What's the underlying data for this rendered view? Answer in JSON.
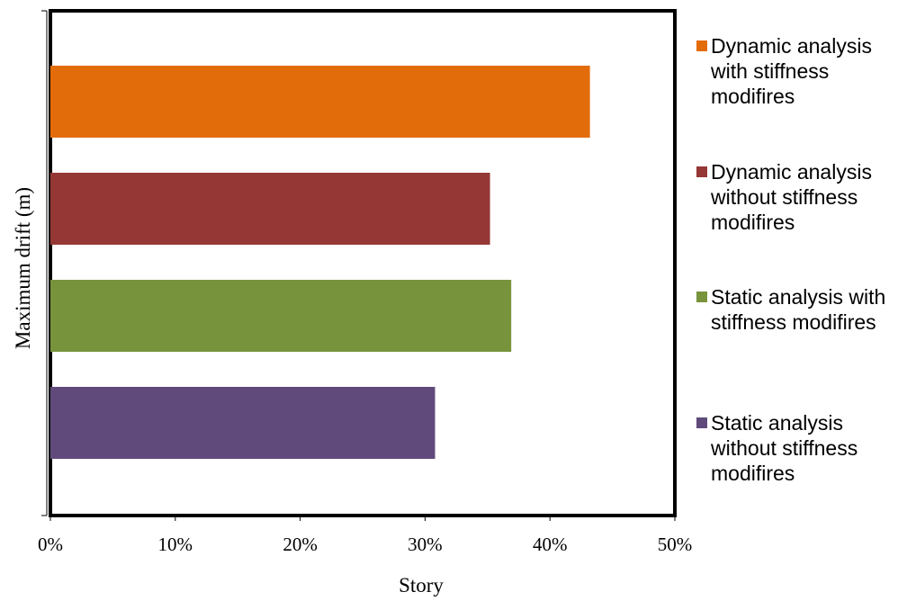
{
  "chart_data": {
    "type": "bar",
    "orientation": "horizontal",
    "title": "",
    "xlabel": "Story",
    "ylabel": "Maximum drift (m)",
    "xlim": [
      0,
      0.5
    ],
    "x_tick_labels": [
      "0%",
      "10%",
      "20%",
      "30%",
      "40%",
      "50%"
    ],
    "grid": false,
    "legend_position": "right",
    "series": [
      {
        "name": "Dynamic analysis with stiffness modifires",
        "value": 0.432,
        "color": "#E36C0A"
      },
      {
        "name": "Dynamic analysis without stiffness modifires",
        "value": 0.352,
        "color": "#953735"
      },
      {
        "name": "Static analysis with stiffness modifires",
        "value": 0.369,
        "color": "#77933C"
      },
      {
        "name": "Static analysis without stiffness modifires",
        "value": 0.308,
        "color": "#604A7B"
      }
    ],
    "legend_lines": [
      [
        "Dynamic analysis",
        "with stiffness",
        "modifires"
      ],
      [
        "Dynamic analysis",
        "without stiffness",
        "modifires"
      ],
      [
        "Static analysis with",
        "stiffness modifires"
      ],
      [
        "Static analysis",
        "without stiffness",
        "modifires"
      ]
    ]
  }
}
